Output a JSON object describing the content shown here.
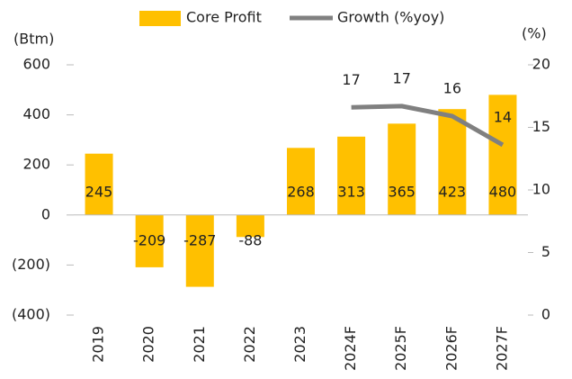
{
  "chart_data": {
    "type": "bar",
    "categories": [
      "2019",
      "2020",
      "2021",
      "2022",
      "2023",
      "2024F",
      "2025F",
      "2026F",
      "2027F"
    ],
    "series": [
      {
        "name": "Core Profit",
        "type": "bar",
        "color": "#FFC000",
        "values": [
          245,
          -209,
          -287,
          -88,
          268,
          313,
          365,
          423,
          480
        ]
      },
      {
        "name": "Growth (%yoy)",
        "type": "line",
        "axis": "y2",
        "color": "#808080",
        "values": [
          null,
          null,
          null,
          null,
          null,
          16.6,
          16.7,
          15.9,
          13.6
        ],
        "value_labels": [
          null,
          null,
          null,
          null,
          null,
          "17",
          "17",
          "16",
          "14"
        ]
      }
    ],
    "ylabel": "(Btm)",
    "y2label": "(%)",
    "ylim": [
      -400,
      600
    ],
    "yticks": [
      {
        "value": -400,
        "label": "(400)"
      },
      {
        "value": -200,
        "label": "(200)"
      },
      0,
      200,
      400,
      600
    ],
    "y2lim": [
      0,
      20
    ],
    "y2ticks": [
      0,
      5,
      10,
      15,
      20
    ],
    "legend": "top",
    "grid": false
  }
}
